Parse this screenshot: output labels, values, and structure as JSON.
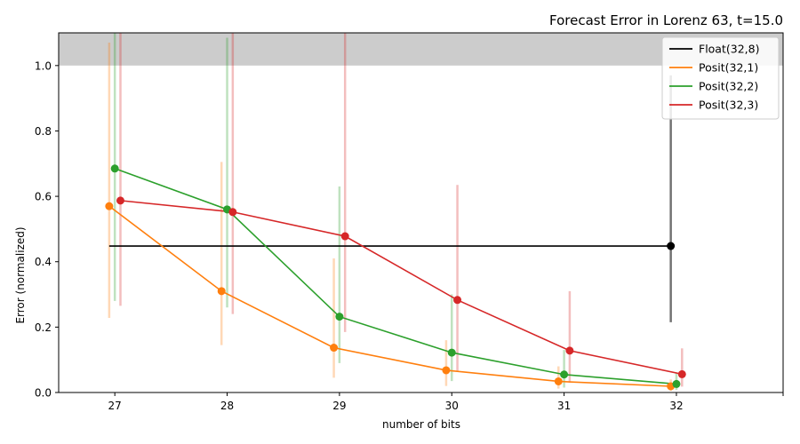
{
  "chart_data": {
    "type": "line",
    "title": "Forecast Error in Lorenz 63, t=15.0",
    "xlabel": "number of bits",
    "ylabel": "Error (normalized)",
    "xlim": [
      26.5,
      32.95
    ],
    "ylim": [
      0,
      1.1
    ],
    "x_ticks": [
      27,
      28,
      29,
      30,
      31,
      32
    ],
    "y_ticks": [
      0.0,
      0.2,
      0.4,
      0.6,
      0.8,
      1.0
    ],
    "y_tick_labels": [
      "0.0",
      "0.2",
      "0.4",
      "0.6",
      "0.8",
      "1.0"
    ],
    "grid": false,
    "legend_position": "top-right",
    "shaded_band": {
      "y_from": 1.0,
      "y_to": 1.1,
      "color": "#cccccc"
    },
    "series": [
      {
        "name": "Float(32,8)",
        "color": "#000000",
        "x": [
          32
        ],
        "y": [
          0.448
        ],
        "err_low": [
          0.215
        ],
        "err_high": [
          0.97
        ],
        "reference_line": {
          "x_from": 26.95,
          "x_to": 32,
          "y": 0.448
        },
        "marker_offset": -0.05
      },
      {
        "name": "Posit(32,1)",
        "color": "#ff7f0e",
        "x": [
          27,
          28,
          29,
          30,
          31,
          32
        ],
        "y": [
          0.57,
          0.31,
          0.137,
          0.068,
          0.034,
          0.019
        ],
        "err_low": [
          0.228,
          0.145,
          0.045,
          0.02,
          0.012,
          0.005
        ],
        "err_high": [
          1.07,
          0.705,
          0.41,
          0.16,
          0.08,
          0.04
        ],
        "marker_offset": -0.05
      },
      {
        "name": "Posit(32,2)",
        "color": "#2ca02c",
        "x": [
          27,
          28,
          29,
          30,
          31,
          32
        ],
        "y": [
          0.685,
          0.56,
          0.232,
          0.122,
          0.055,
          0.026
        ],
        "err_low": [
          0.28,
          0.26,
          0.09,
          0.035,
          0.015,
          0.008
        ],
        "err_high": [
          1.1,
          1.085,
          0.63,
          0.3,
          0.13,
          0.06
        ],
        "marker_offset": 0.0
      },
      {
        "name": "Posit(32,3)",
        "color": "#d62728",
        "x": [
          27,
          28,
          29,
          30,
          31,
          32
        ],
        "y": [
          0.587,
          0.552,
          0.478,
          0.283,
          0.128,
          0.056
        ],
        "err_low": [
          0.265,
          0.24,
          0.185,
          0.065,
          0.03,
          0.018
        ],
        "err_high": [
          1.1,
          1.1,
          1.1,
          0.635,
          0.31,
          0.135
        ],
        "marker_offset": 0.05
      }
    ]
  }
}
